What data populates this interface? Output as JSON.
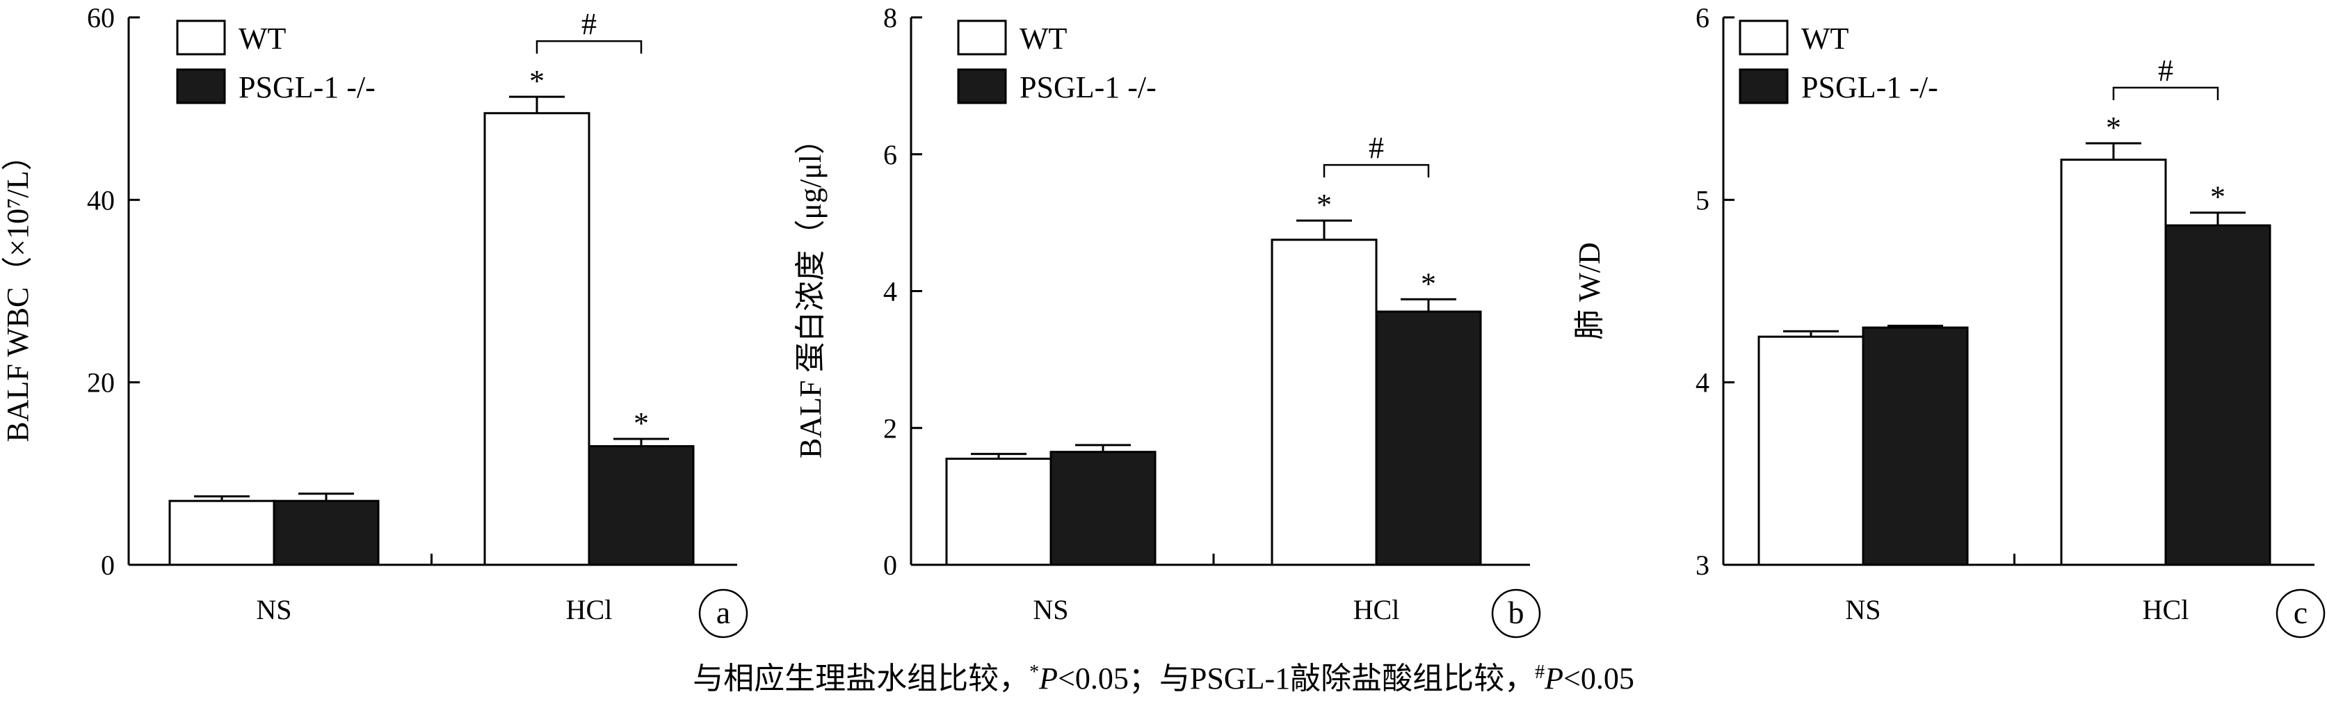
{
  "chart_data": [
    {
      "type": "bar",
      "panel_label": "a",
      "ylabel": "BALF WBC（×10⁷/L）",
      "ylim": [
        0,
        60
      ],
      "yticks": [
        0,
        20,
        40,
        60
      ],
      "categories": [
        "NS",
        "HCl"
      ],
      "series": [
        {
          "name": "WT",
          "values": [
            7.0,
            49.5
          ],
          "errors": [
            0.5,
            1.8
          ],
          "color": "#ffffff"
        },
        {
          "name": "PSGL-1 -/-",
          "values": [
            7.0,
            13.0
          ],
          "errors": [
            0.8,
            0.8
          ],
          "color": "#1a1a1a"
        }
      ],
      "significance": [
        {
          "mark": "*",
          "category": 1,
          "series": 0
        },
        {
          "mark": "*",
          "category": 1,
          "series": 1
        },
        {
          "mark": "#",
          "category": 1,
          "between_series": [
            0,
            1
          ]
        }
      ],
      "legend": "top-left"
    },
    {
      "type": "bar",
      "panel_label": "b",
      "ylabel": "BALF 蛋白浓度（μg/μl）",
      "ylim": [
        0,
        8
      ],
      "yticks": [
        0,
        2,
        4,
        6,
        8
      ],
      "categories": [
        "NS",
        "HCl"
      ],
      "series": [
        {
          "name": "WT",
          "values": [
            1.55,
            4.75
          ],
          "errors": [
            0.07,
            0.28
          ],
          "color": "#ffffff"
        },
        {
          "name": "PSGL-1 -/-",
          "values": [
            1.65,
            3.7
          ],
          "errors": [
            0.1,
            0.18
          ],
          "color": "#1a1a1a"
        }
      ],
      "significance": [
        {
          "mark": "*",
          "category": 1,
          "series": 0
        },
        {
          "mark": "*",
          "category": 1,
          "series": 1
        },
        {
          "mark": "#",
          "category": 1,
          "between_series": [
            0,
            1
          ]
        }
      ],
      "legend": "top-left"
    },
    {
      "type": "bar",
      "panel_label": "c",
      "ylabel": "肺 W/D",
      "ylim": [
        3,
        6
      ],
      "yticks": [
        3,
        4,
        5,
        6
      ],
      "categories": [
        "NS",
        "HCl"
      ],
      "series": [
        {
          "name": "WT",
          "values": [
            4.25,
            5.22
          ],
          "errors": [
            0.03,
            0.09
          ],
          "color": "#ffffff"
        },
        {
          "name": "PSGL-1 -/-",
          "values": [
            4.3,
            4.86
          ],
          "errors": [
            0.01,
            0.07
          ],
          "color": "#1a1a1a"
        }
      ],
      "significance": [
        {
          "mark": "*",
          "category": 1,
          "series": 0
        },
        {
          "mark": "*",
          "category": 1,
          "series": 1
        },
        {
          "mark": "#",
          "category": 1,
          "between_series": [
            0,
            1
          ]
        }
      ],
      "legend": "top-left"
    }
  ],
  "caption": {
    "part1": "与相应生理盐水组比较，",
    "sup1": "*",
    "p1": "P",
    "rest1": "<0.05；与PSGL-1敲除盐酸组比较，",
    "sup2": "#",
    "p2": "P",
    "rest2": "<0.05"
  }
}
